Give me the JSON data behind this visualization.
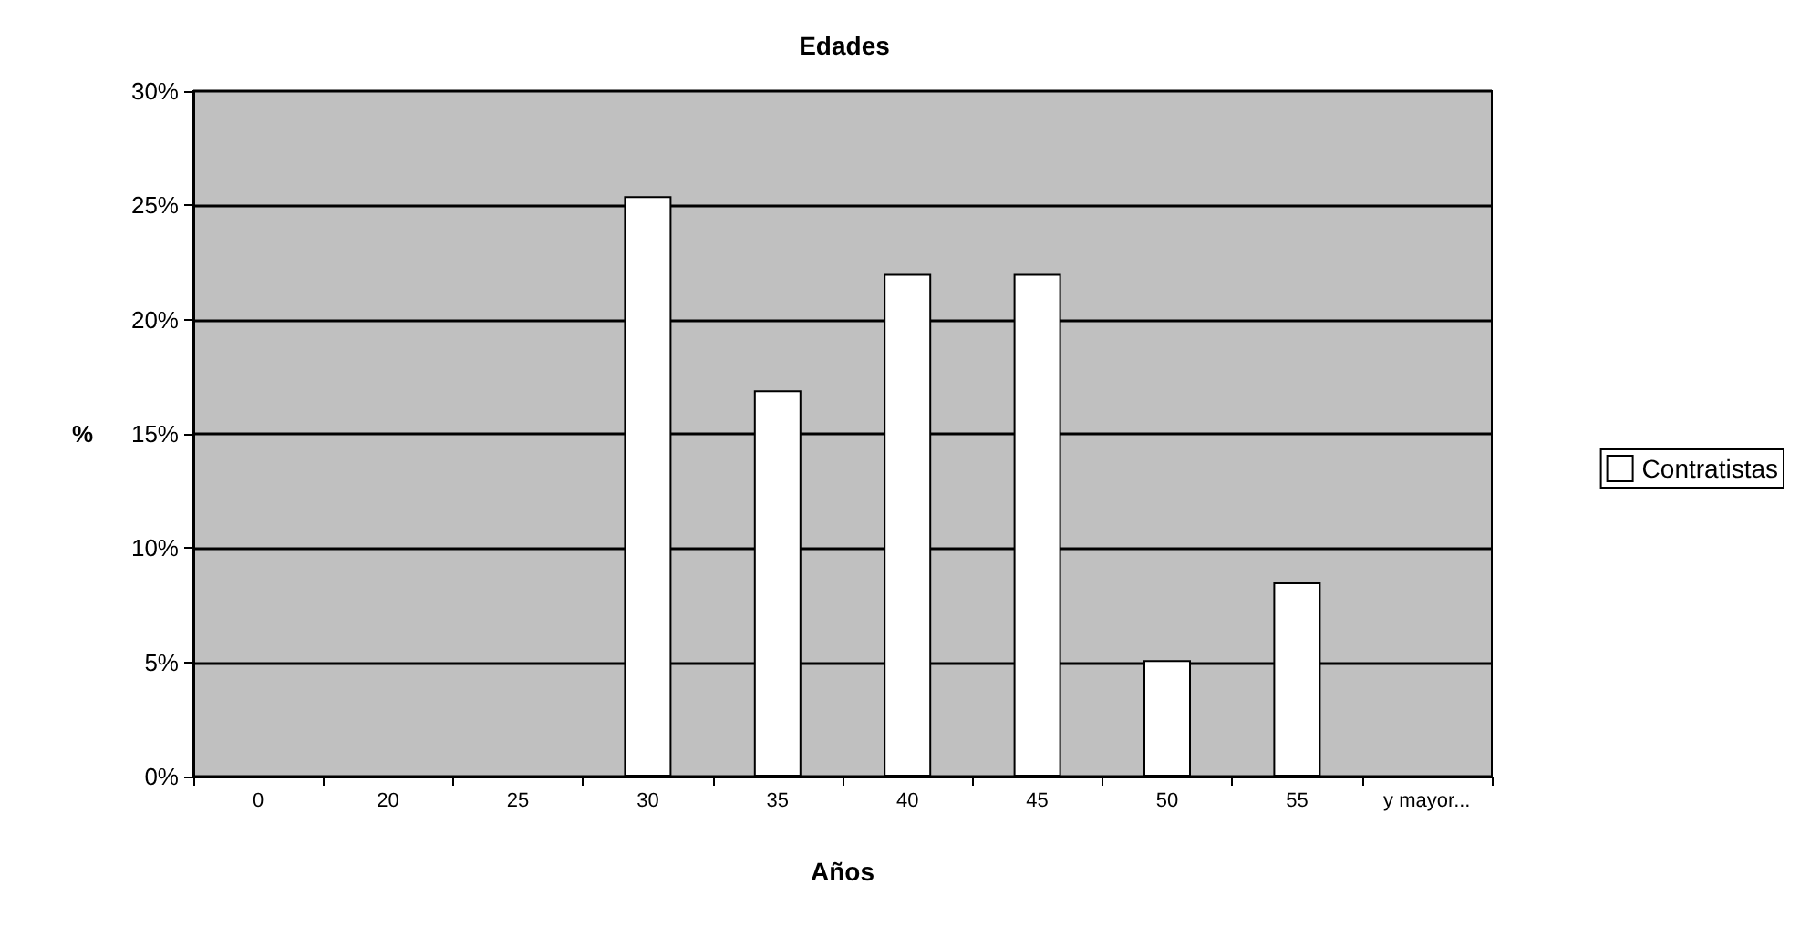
{
  "chart_data": {
    "type": "bar",
    "title": "Edades",
    "xlabel": "Años",
    "ylabel": "%",
    "categories": [
      "0",
      "20",
      "25",
      "30",
      "35",
      "40",
      "45",
      "50",
      "55",
      "y mayor..."
    ],
    "series": [
      {
        "name": "Contratistas",
        "color": "#ffffff",
        "values": [
          0,
          0,
          0,
          25.4,
          16.9,
          22.0,
          22.0,
          5.1,
          8.5,
          0
        ]
      }
    ],
    "ylim": [
      0,
      30
    ],
    "yticks": [
      {
        "value": 0,
        "label": "0%"
      },
      {
        "value": 5,
        "label": "5%"
      },
      {
        "value": 10,
        "label": "10%"
      },
      {
        "value": 15,
        "label": "15%"
      },
      {
        "value": 20,
        "label": "20%"
      },
      {
        "value": 25,
        "label": "25%"
      },
      {
        "value": 30,
        "label": "30%"
      }
    ],
    "grid": "y",
    "legend": "right"
  }
}
